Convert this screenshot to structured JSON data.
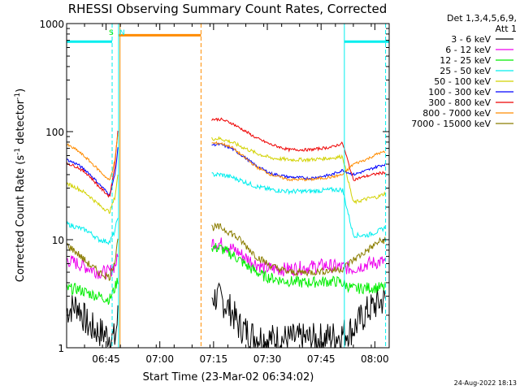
{
  "chart_data": {
    "type": "line",
    "title": "RHESSI Observing Summary Count Rates, Corrected",
    "xlabel": "Start Time (23-Mar-02 06:34:02)",
    "ylabel_main": "Corrected Count Rate (s",
    "ylabel_sup1": "-1",
    "ylabel_mid": " detector",
    "ylabel_sup2": "-1",
    "ylabel_end": ")",
    "yscale": "log",
    "ylim": [
      1,
      1000
    ],
    "xlim_minutes": [
      0,
      90
    ],
    "x_ticks": [
      {
        "min": 11,
        "label": "06:45"
      },
      {
        "min": 26,
        "label": "07:00"
      },
      {
        "min": 41,
        "label": "07:15"
      },
      {
        "min": 56,
        "label": "07:30"
      },
      {
        "min": 71,
        "label": "07:45"
      },
      {
        "min": 86,
        "label": "08:00"
      }
    ],
    "y_ticks": [
      {
        "v": 1,
        "label": "1"
      },
      {
        "v": 10,
        "label": "10"
      },
      {
        "v": 100,
        "label": "100"
      },
      {
        "v": 1000,
        "label": "1000"
      }
    ],
    "legend": {
      "placement": "top-right",
      "header1": "Det 1,3,4,5,6,9,",
      "header2": "Att 1",
      "entries": [
        {
          "label": "3 - 6 keV",
          "color": "#000000"
        },
        {
          "label": "6 - 12 keV",
          "color": "#ee00ee"
        },
        {
          "label": "12 - 25 keV",
          "color": "#00ee00"
        },
        {
          "label": "25 - 50 keV",
          "color": "#00eeee"
        },
        {
          "label": "50 - 100 keV",
          "color": "#d2d200"
        },
        {
          "label": "100 - 300 keV",
          "color": "#0000ff"
        },
        {
          "label": "300 - 800 keV",
          "color": "#ee0000"
        },
        {
          "label": "800 - 7000 keV",
          "color": "#ff8c00"
        },
        {
          "label": "7000 - 15000 keV",
          "color": "#8b7d00"
        }
      ]
    },
    "series": [
      {
        "name": "3 - 6 keV",
        "color": "#000000",
        "noise": 0.35,
        "points": [
          [
            0,
            2.2
          ],
          [
            3,
            2.5
          ],
          [
            6,
            1.6
          ],
          [
            9,
            1.4
          ],
          [
            12,
            1.3
          ],
          [
            13.5,
            1.2
          ],
          [
            14.5,
            2.2
          ],
          [
            40.5,
            3
          ],
          [
            43,
            2.8
          ],
          [
            46,
            2.2
          ],
          [
            48,
            1.6
          ],
          [
            52,
            1.3
          ],
          [
            57,
            1.2
          ],
          [
            63,
            1.2
          ],
          [
            70,
            1.2
          ],
          [
            76,
            1.3
          ],
          [
            80,
            1.5
          ],
          [
            84,
            2.2
          ],
          [
            87,
            2.6
          ],
          [
            89,
            2.8
          ]
        ]
      },
      {
        "name": "6 - 12 keV",
        "color": "#ee00ee",
        "noise": 0.15,
        "points": [
          [
            0,
            6.5
          ],
          [
            3,
            6
          ],
          [
            6,
            5.5
          ],
          [
            9,
            5
          ],
          [
            12,
            5
          ],
          [
            13.5,
            5.8
          ],
          [
            14.5,
            7
          ],
          [
            40.5,
            9.5
          ],
          [
            43,
            9.2
          ],
          [
            47,
            8
          ],
          [
            51,
            6.5
          ],
          [
            55,
            5.5
          ],
          [
            60,
            5.3
          ],
          [
            66,
            5.5
          ],
          [
            72,
            5.8
          ],
          [
            76,
            5.6
          ],
          [
            80,
            5.4
          ],
          [
            84,
            6
          ],
          [
            87,
            6.2
          ],
          [
            89,
            6.3
          ]
        ]
      },
      {
        "name": "12 - 25 keV",
        "color": "#00ee00",
        "noise": 0.12,
        "points": [
          [
            0,
            3.5
          ],
          [
            3,
            3.5
          ],
          [
            6,
            3.2
          ],
          [
            9,
            3
          ],
          [
            12,
            2.8
          ],
          [
            13.5,
            3.6
          ],
          [
            14.5,
            4.5
          ],
          [
            40.5,
            8.5
          ],
          [
            43,
            8.3
          ],
          [
            47,
            7
          ],
          [
            51,
            5.5
          ],
          [
            55,
            4.6
          ],
          [
            60,
            4.2
          ],
          [
            66,
            4
          ],
          [
            72,
            4.1
          ],
          [
            76,
            4.1
          ],
          [
            80,
            3.5
          ],
          [
            84,
            3.6
          ],
          [
            87,
            3.6
          ],
          [
            89,
            3.6
          ]
        ]
      },
      {
        "name": "25 - 50 keV",
        "color": "#00eeee",
        "noise": 0.05,
        "points": [
          [
            0,
            14
          ],
          [
            3,
            13
          ],
          [
            6,
            12
          ],
          [
            9,
            10
          ],
          [
            12,
            9.5
          ],
          [
            13.5,
            12
          ],
          [
            14.5,
            18
          ],
          [
            40.5,
            40
          ],
          [
            43,
            40
          ],
          [
            46,
            38
          ],
          [
            49,
            35
          ],
          [
            53,
            31
          ],
          [
            57,
            29
          ],
          [
            62,
            28
          ],
          [
            68,
            28
          ],
          [
            74,
            29
          ],
          [
            77,
            29
          ],
          [
            80,
            11
          ],
          [
            84,
            11
          ],
          [
            87,
            12
          ],
          [
            89,
            13
          ]
        ]
      },
      {
        "name": "50 - 100 keV",
        "color": "#d2d200",
        "noise": 0.04,
        "points": [
          [
            0,
            33
          ],
          [
            3,
            30
          ],
          [
            6,
            26
          ],
          [
            9,
            21
          ],
          [
            12,
            18
          ],
          [
            13.5,
            25
          ],
          [
            14.5,
            45
          ],
          [
            40.5,
            86
          ],
          [
            43,
            86
          ],
          [
            46,
            80
          ],
          [
            49,
            72
          ],
          [
            53,
            63
          ],
          [
            57,
            57
          ],
          [
            62,
            55
          ],
          [
            68,
            55
          ],
          [
            74,
            57
          ],
          [
            77,
            59
          ],
          [
            80,
            22
          ],
          [
            84,
            24
          ],
          [
            87,
            25
          ],
          [
            89,
            27
          ]
        ]
      },
      {
        "name": "100 - 300 keV",
        "color": "#0000ff",
        "noise": 0.03,
        "points": [
          [
            0,
            55
          ],
          [
            3,
            50
          ],
          [
            6,
            42
          ],
          [
            9,
            33
          ],
          [
            12,
            26
          ],
          [
            13.5,
            40
          ],
          [
            14.5,
            80
          ],
          [
            40.5,
            76
          ],
          [
            43,
            76
          ],
          [
            46,
            70
          ],
          [
            49,
            60
          ],
          [
            53,
            48
          ],
          [
            57,
            41
          ],
          [
            62,
            38
          ],
          [
            68,
            37
          ],
          [
            74,
            40
          ],
          [
            77,
            44
          ],
          [
            80,
            40
          ],
          [
            84,
            44
          ],
          [
            87,
            48
          ],
          [
            89,
            50
          ]
        ]
      },
      {
        "name": "300 - 800 keV",
        "color": "#ee0000",
        "noise": 0.03,
        "points": [
          [
            0,
            51
          ],
          [
            3,
            47
          ],
          [
            6,
            40
          ],
          [
            9,
            31
          ],
          [
            12,
            25
          ],
          [
            13.5,
            50
          ],
          [
            14.5,
            125
          ],
          [
            40.5,
            130
          ],
          [
            43,
            130
          ],
          [
            46,
            120
          ],
          [
            49,
            105
          ],
          [
            53,
            87
          ],
          [
            57,
            76
          ],
          [
            62,
            68
          ],
          [
            68,
            68
          ],
          [
            74,
            72
          ],
          [
            77,
            78
          ],
          [
            80,
            36
          ],
          [
            84,
            39
          ],
          [
            87,
            41
          ],
          [
            89,
            42
          ]
        ]
      },
      {
        "name": "800 - 7000 keV",
        "color": "#ff8c00",
        "noise": 0.03,
        "points": [
          [
            0,
            76
          ],
          [
            3,
            67
          ],
          [
            6,
            55
          ],
          [
            9,
            44
          ],
          [
            12,
            35
          ],
          [
            13.5,
            55
          ],
          [
            14.5,
            110
          ],
          [
            40.5,
            78
          ],
          [
            43,
            78
          ],
          [
            46,
            72
          ],
          [
            49,
            60
          ],
          [
            53,
            47
          ],
          [
            57,
            40
          ],
          [
            62,
            36
          ],
          [
            68,
            36
          ],
          [
            74,
            38
          ],
          [
            77,
            40
          ],
          [
            80,
            50
          ],
          [
            84,
            56
          ],
          [
            87,
            63
          ],
          [
            89,
            65
          ]
        ]
      },
      {
        "name": "7000 - 15000 keV",
        "color": "#8b7d00",
        "noise": 0.08,
        "points": [
          [
            0,
            9
          ],
          [
            3,
            7.5
          ],
          [
            6,
            6
          ],
          [
            9,
            5
          ],
          [
            12,
            4.5
          ],
          [
            13.5,
            6.5
          ],
          [
            14.5,
            12
          ],
          [
            40.5,
            13
          ],
          [
            43,
            13
          ],
          [
            46,
            11.5
          ],
          [
            49,
            9.5
          ],
          [
            53,
            7
          ],
          [
            57,
            5.7
          ],
          [
            62,
            5
          ],
          [
            68,
            5
          ],
          [
            74,
            5.2
          ],
          [
            77,
            5.4
          ],
          [
            80,
            6.5
          ],
          [
            84,
            8
          ],
          [
            87,
            9.5
          ],
          [
            89,
            10
          ]
        ]
      }
    ],
    "saa_segments": [
      [
        0,
        12.7
      ],
      [
        77.5,
        90
      ]
    ],
    "saa_level": 680,
    "night_segment": [
      14.5,
      37.5
    ],
    "night_level": 780,
    "markers": [
      {
        "label": "S",
        "at": 12.7,
        "color": "#00ee00"
      },
      {
        "label": "N",
        "at": 14.5,
        "color": "#00eeee"
      }
    ],
    "vlines": [
      {
        "at": 12.7,
        "color": "#00eeee",
        "dash": true
      },
      {
        "at": 14.5,
        "color": "#00eeee",
        "dash": false
      },
      {
        "at": 14.9,
        "color": "#ff8c00",
        "dash": false
      },
      {
        "at": 37.5,
        "color": "#ff8c00",
        "dash": true
      },
      {
        "at": 77.5,
        "color": "#00eeee",
        "dash": false
      },
      {
        "at": 89,
        "color": "#00eeee",
        "dash": true
      }
    ]
  },
  "footer_date": "24-Aug-2022 18:13"
}
